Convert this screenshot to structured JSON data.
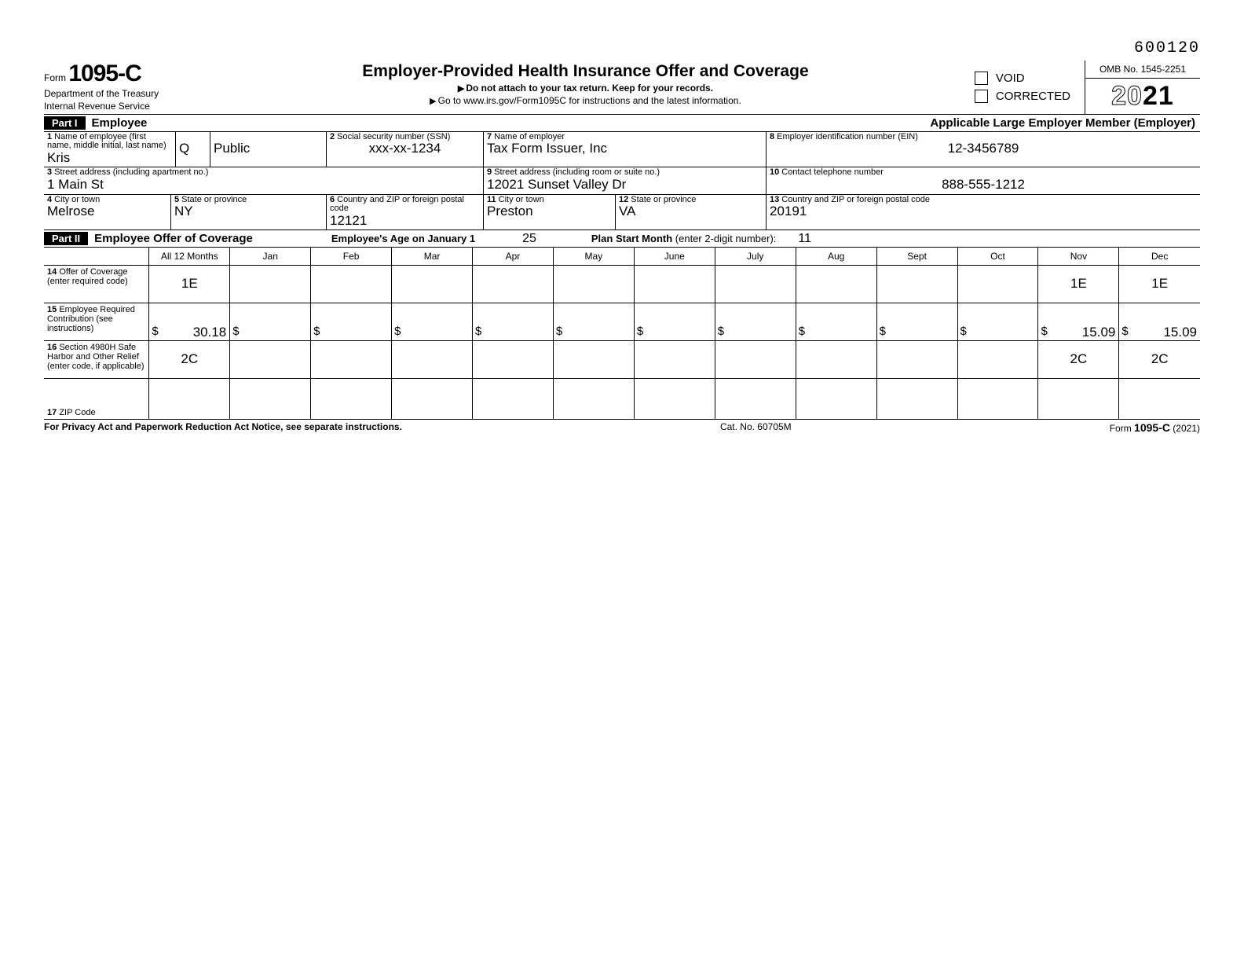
{
  "top_code": "600120",
  "header": {
    "form_word": "Form",
    "form_number": "1095-C",
    "dept1": "Department of the Treasury",
    "dept2": "Internal Revenue Service",
    "title": "Employer-Provided Health Insurance Offer and Coverage",
    "sub1": "Do not attach to your tax return. Keep for your records.",
    "sub2": "Go to www.irs.gov/Form1095C for instructions and the latest information.",
    "void": "VOID",
    "corrected": "CORRECTED",
    "omb": "OMB No. 1545-2251",
    "year_outline": "20",
    "year_solid": "21"
  },
  "part1": {
    "badge": "Part I",
    "left_title": "Employee",
    "right_title": "Applicable Large Employer Member (Employer)",
    "f1": {
      "label": "Name of employee (first name, middle initial, last name)",
      "num": "1",
      "first": "Kris",
      "mi": "Q",
      "last": "Public"
    },
    "f2": {
      "label": "Social security number (SSN)",
      "num": "2",
      "value": "xxx-xx-1234"
    },
    "f3": {
      "label": "Street address (including apartment no.)",
      "num": "3",
      "value": "1 Main St"
    },
    "f4": {
      "label": "City or town",
      "num": "4",
      "value": "Melrose"
    },
    "f5": {
      "label": "State or province",
      "num": "5",
      "value": "NY"
    },
    "f6": {
      "label": "Country and ZIP or foreign postal code",
      "num": "6",
      "value": "12121"
    },
    "f7": {
      "label": "Name of employer",
      "num": "7",
      "value": "Tax Form Issuer, Inc"
    },
    "f8": {
      "label": "Employer identification number (EIN)",
      "num": "8",
      "value": "12-3456789"
    },
    "f9": {
      "label": "Street address (including room or suite no.)",
      "num": "9",
      "value": "12021 Sunset Valley Dr"
    },
    "f10": {
      "label": "Contact telephone number",
      "num": "10",
      "value": "888-555-1212"
    },
    "f11": {
      "label": "City or town",
      "num": "11",
      "value": "Preston"
    },
    "f12": {
      "label": "State or province",
      "num": "12",
      "value": "VA"
    },
    "f13": {
      "label": "Country and ZIP or foreign postal code",
      "num": "13",
      "value": "20191"
    }
  },
  "part2": {
    "badge": "Part II",
    "title": "Employee Offer of Coverage",
    "age_label": "Employee's Age on January 1",
    "age_value": "25",
    "psm_label": "Plan Start Month",
    "psm_paren": " (enter 2-digit number):",
    "psm_value": "11",
    "col_all": "All 12 Months",
    "months": [
      "Jan",
      "Feb",
      "Mar",
      "Apr",
      "May",
      "June",
      "July",
      "Aug",
      "Sept",
      "Oct",
      "Nov",
      "Dec"
    ],
    "row14": {
      "num": "14",
      "label": "Offer of Coverage (enter required code)",
      "all": "1E",
      "vals": [
        "",
        "",
        "",
        "",
        "",
        "",
        "",
        "",
        "",
        "",
        "1E",
        "1E"
      ]
    },
    "row15": {
      "num": "15",
      "label": "Employee Required Contribution (see instructions)",
      "all": "30.18",
      "vals": [
        "",
        "",
        "",
        "",
        "",
        "",
        "",
        "",
        "",
        "",
        "15.09",
        "15.09"
      ]
    },
    "row16": {
      "num": "16",
      "label": "Section 4980H Safe Harbor and Other Relief (enter code, if applicable)",
      "all": "2C",
      "vals": [
        "",
        "",
        "",
        "",
        "",
        "",
        "",
        "",
        "",
        "",
        "2C",
        "2C"
      ]
    },
    "row17": {
      "num": "17",
      "label": "ZIP Code"
    }
  },
  "footer": {
    "left": "For Privacy Act and Paperwork Reduction Act Notice, see separate instructions.",
    "center": "Cat. No. 60705M",
    "right_pre": "Form ",
    "right_form": "1095-C",
    "right_post": " (2021)"
  }
}
